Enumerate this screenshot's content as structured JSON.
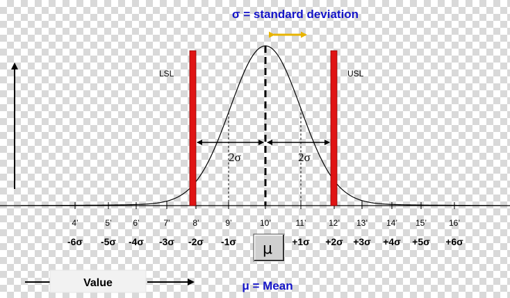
{
  "title": "σ = standard deviation",
  "mean_label": "μ = Mean",
  "value_label": "Value",
  "mu_button": "μ",
  "limits": {
    "lsl": "LSL",
    "usl": "USL"
  },
  "span_labels": {
    "left": "2σ",
    "right": "2σ"
  },
  "ticks": [
    {
      "pos": "4’",
      "sigma": "-6σ"
    },
    {
      "pos": "5’",
      "sigma": "-5σ"
    },
    {
      "pos": "6’",
      "sigma": "-4σ"
    },
    {
      "pos": "7’",
      "sigma": "-3σ"
    },
    {
      "pos": "8’",
      "sigma": "-2σ"
    },
    {
      "pos": "9’",
      "sigma": "-1σ"
    },
    {
      "pos": "10’",
      "sigma": ""
    },
    {
      "pos": "11’",
      "sigma": "+1σ"
    },
    {
      "pos": "12’",
      "sigma": "+2σ"
    },
    {
      "pos": "13’",
      "sigma": "+3σ"
    },
    {
      "pos": "14’",
      "sigma": "+4σ"
    },
    {
      "pos": "15’",
      "sigma": "+5σ"
    },
    {
      "pos": "16’",
      "sigma": "+6σ"
    }
  ],
  "colors": {
    "accent_blue": "#1515c8",
    "limit_red": "#e01414",
    "sigma_arrow": "#e8b400"
  }
}
